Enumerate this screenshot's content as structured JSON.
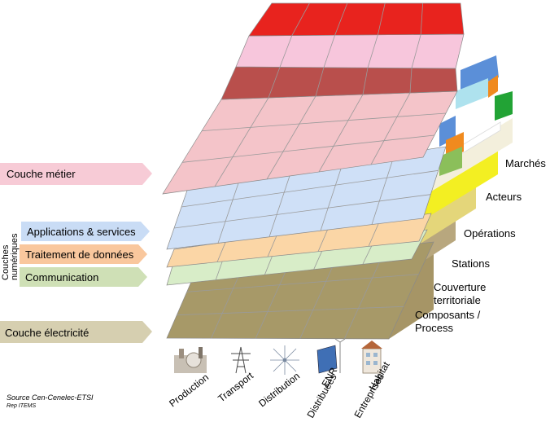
{
  "left_labels": {
    "metier": "Couche métier",
    "applications": "Applications & services",
    "traitement": "Traitement de données",
    "communication": "Communication",
    "electricite": "Couche électricité",
    "numeriques_line1": "Couches",
    "numeriques_line2": "numériques"
  },
  "right_labels": {
    "marches": "Marchés",
    "acteurs": "Acteurs",
    "operations": "Opérations",
    "stations": "Stations",
    "couverture_line1": "Couverture",
    "couverture_line2": "territoriale",
    "composants_line1": "Composants /",
    "composants_line2": "Process"
  },
  "bottom_labels": {
    "production": "Production",
    "transport": "Transport",
    "distribution": "Distribution",
    "enr_line1": "ENR",
    "enr_line2": "Distribuées",
    "habitat_line1": "Habitat",
    "habitat_line2": "Entreprises"
  },
  "source": {
    "line1": "Source Cen-Cenelec-ETSI",
    "line2": "Rep ITEMS"
  },
  "colors": {
    "red": "#e8231e",
    "pink": "#f7c6dc",
    "darkred": "#b94f4c",
    "salmon": "#f4c4c9",
    "blue": "#cfe0f7",
    "orange": "#fbd6a6",
    "green": "#d8edc8",
    "olive": "#a79968",
    "tab_blue": "#5b8fd8",
    "tab_cyan": "#aee2ee",
    "tab_orange": "#f08a1e",
    "tab_green": "#22a335",
    "side_cream": "#f3efdc",
    "side_yellow": "#f3ef22",
    "side_gold": "#e4d67a",
    "side_tan": "#b8a77e"
  }
}
